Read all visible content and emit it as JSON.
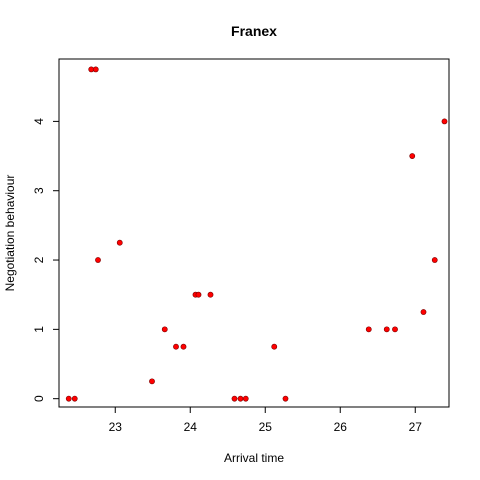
{
  "chart_data": {
    "type": "scatter",
    "title": "Franex",
    "xlabel": "Arrival time",
    "ylabel": "Negotiation behaviour",
    "xlim": [
      22.25,
      27.45
    ],
    "ylim": [
      -0.12,
      4.9
    ],
    "x_ticks": [
      23,
      24,
      25,
      26,
      27
    ],
    "y_ticks": [
      0,
      1,
      2,
      3,
      4
    ],
    "grid": false,
    "legend": "none",
    "point_color": "#ff0000",
    "point_edge": "#7a0000",
    "points": [
      {
        "x": 22.38,
        "y": 0
      },
      {
        "x": 22.46,
        "y": 0
      },
      {
        "x": 22.68,
        "y": 4.75
      },
      {
        "x": 22.74,
        "y": 4.75
      },
      {
        "x": 22.77,
        "y": 2
      },
      {
        "x": 23.06,
        "y": 2.25
      },
      {
        "x": 23.49,
        "y": 0.25
      },
      {
        "x": 23.66,
        "y": 1
      },
      {
        "x": 23.81,
        "y": 0.75
      },
      {
        "x": 23.91,
        "y": 0.75
      },
      {
        "x": 24.07,
        "y": 1.5
      },
      {
        "x": 24.11,
        "y": 1.5
      },
      {
        "x": 24.27,
        "y": 1.5
      },
      {
        "x": 24.59,
        "y": 0
      },
      {
        "x": 24.67,
        "y": 0
      },
      {
        "x": 24.74,
        "y": 0
      },
      {
        "x": 25.12,
        "y": 0.75
      },
      {
        "x": 25.27,
        "y": 0
      },
      {
        "x": 26.38,
        "y": 1
      },
      {
        "x": 26.62,
        "y": 1
      },
      {
        "x": 26.73,
        "y": 1
      },
      {
        "x": 26.96,
        "y": 3.5
      },
      {
        "x": 27.11,
        "y": 1.25
      },
      {
        "x": 27.26,
        "y": 2
      },
      {
        "x": 27.39,
        "y": 4
      }
    ]
  }
}
